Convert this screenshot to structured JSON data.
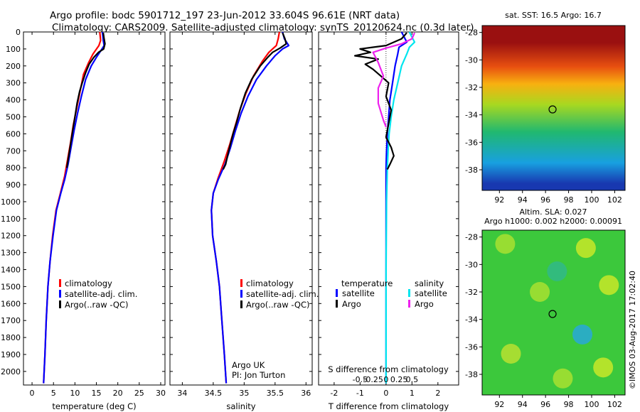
{
  "header": {
    "line1": "Argo profile: bodc 5901712_197 23-Jun-2012 33.604S 96.61E (NRT data)",
    "line2": "Climatology: CARS2009. Satellite-adjusted climatology: synTS_20120624.nc (0.3d later)"
  },
  "colors": {
    "climatology": "#ff0000",
    "satellite": "#0000ff",
    "argo": "#000000",
    "satellite_salinity": "#00e5ee",
    "argo_salinity": "#ee22ee"
  },
  "chart_data": [
    {
      "type": "line",
      "id": "temperature",
      "xlabel": "temperature (deg C)",
      "ylabel": "",
      "xlim": [
        -2,
        31
      ],
      "ylim": [
        2080,
        0
      ],
      "xticks": [
        0,
        5,
        10,
        15,
        20,
        25,
        30
      ],
      "yticks": [
        0,
        100,
        200,
        300,
        400,
        500,
        600,
        700,
        800,
        900,
        1000,
        1100,
        1200,
        1300,
        1400,
        1500,
        1600,
        1700,
        1800,
        1900,
        2000
      ],
      "legend": [
        "climatology",
        "satellite-adj. clim.",
        "Argo(..raw -QC)"
      ],
      "series": [
        {
          "name": "climatology",
          "color": "#ff0000",
          "points": [
            [
              15.8,
              0
            ],
            [
              16.0,
              50
            ],
            [
              15.6,
              80
            ],
            [
              14.2,
              130
            ],
            [
              13.2,
              180
            ],
            [
              12.0,
              250
            ],
            [
              11.2,
              350
            ],
            [
              10.4,
              450
            ],
            [
              9.6,
              550
            ],
            [
              9.0,
              650
            ],
            [
              8.3,
              750
            ],
            [
              7.6,
              850
            ],
            [
              6.6,
              950
            ],
            [
              5.6,
              1050
            ],
            [
              4.8,
              1200
            ],
            [
              4.2,
              1350
            ],
            [
              3.7,
              1500
            ],
            [
              3.3,
              1700
            ],
            [
              3.0,
              1900
            ],
            [
              2.7,
              2070
            ]
          ]
        },
        {
          "name": "satellite-adj. clim.",
          "color": "#0000ff",
          "points": [
            [
              16.4,
              0
            ],
            [
              16.6,
              50
            ],
            [
              16.8,
              80
            ],
            [
              16.3,
              100
            ],
            [
              15.0,
              150
            ],
            [
              13.8,
              200
            ],
            [
              12.5,
              280
            ],
            [
              11.5,
              380
            ],
            [
              10.6,
              480
            ],
            [
              9.8,
              580
            ],
            [
              9.1,
              680
            ],
            [
              8.4,
              780
            ],
            [
              7.6,
              870
            ],
            [
              6.7,
              950
            ],
            [
              5.7,
              1050
            ],
            [
              4.9,
              1200
            ],
            [
              4.2,
              1350
            ],
            [
              3.7,
              1500
            ],
            [
              3.3,
              1700
            ],
            [
              3.0,
              1900
            ],
            [
              2.7,
              2070
            ]
          ]
        },
        {
          "name": "Argo(..raw -QC)",
          "color": "#000000",
          "points": [
            [
              16.6,
              5
            ],
            [
              16.8,
              40
            ],
            [
              17.0,
              70
            ],
            [
              16.7,
              100
            ],
            [
              15.5,
              120
            ],
            [
              14.4,
              150
            ],
            [
              13.3,
              190
            ],
            [
              12.5,
              240
            ],
            [
              11.7,
              300
            ],
            [
              11.1,
              350
            ],
            [
              10.5,
              420
            ],
            [
              10.0,
              500
            ],
            [
              9.5,
              580
            ],
            [
              9.0,
              660
            ],
            [
              8.5,
              740
            ],
            [
              8.1,
              800
            ]
          ]
        }
      ]
    },
    {
      "type": "line",
      "id": "salinity",
      "xlabel": "salinity",
      "ylabel": "",
      "xlim": [
        33.8,
        36.1
      ],
      "ylim": [
        2080,
        0
      ],
      "xticks": [
        34,
        34.5,
        35,
        35.5,
        36
      ],
      "legend": [
        "climatology",
        "satellite-adj. clim.",
        "Argo(..raw -QC)"
      ],
      "annotation": [
        "Argo UK",
        "PI: Jon Turton"
      ],
      "series": [
        {
          "name": "climatology",
          "color": "#ff0000",
          "points": [
            [
              35.57,
              0
            ],
            [
              35.55,
              40
            ],
            [
              35.52,
              80
            ],
            [
              35.4,
              120
            ],
            [
              35.3,
              170
            ],
            [
              35.15,
              260
            ],
            [
              35.03,
              360
            ],
            [
              34.93,
              460
            ],
            [
              34.85,
              560
            ],
            [
              34.77,
              660
            ],
            [
              34.68,
              760
            ],
            [
              34.58,
              860
            ],
            [
              34.5,
              950
            ],
            [
              34.47,
              1050
            ],
            [
              34.49,
              1200
            ],
            [
              34.55,
              1350
            ],
            [
              34.6,
              1500
            ],
            [
              34.64,
              1700
            ],
            [
              34.68,
              1900
            ],
            [
              34.71,
              2070
            ]
          ]
        },
        {
          "name": "satellite-adj. clim.",
          "color": "#0000ff",
          "points": [
            [
              35.62,
              0
            ],
            [
              35.65,
              40
            ],
            [
              35.72,
              80
            ],
            [
              35.62,
              100
            ],
            [
              35.5,
              140
            ],
            [
              35.36,
              200
            ],
            [
              35.2,
              280
            ],
            [
              35.06,
              380
            ],
            [
              34.95,
              480
            ],
            [
              34.86,
              580
            ],
            [
              34.78,
              680
            ],
            [
              34.69,
              780
            ],
            [
              34.58,
              870
            ],
            [
              34.5,
              950
            ],
            [
              34.47,
              1050
            ],
            [
              34.49,
              1200
            ],
            [
              34.55,
              1350
            ],
            [
              34.6,
              1500
            ],
            [
              34.64,
              1700
            ],
            [
              34.68,
              1900
            ],
            [
              34.71,
              2070
            ]
          ]
        },
        {
          "name": "Argo(..raw -QC)",
          "color": "#000000",
          "points": [
            [
              35.62,
              5
            ],
            [
              35.66,
              40
            ],
            [
              35.68,
              70
            ],
            [
              35.58,
              95
            ],
            [
              35.46,
              120
            ],
            [
              35.38,
              150
            ],
            [
              35.26,
              200
            ],
            [
              35.12,
              280
            ],
            [
              35.02,
              360
            ],
            [
              34.94,
              450
            ],
            [
              34.88,
              530
            ],
            [
              34.82,
              600
            ],
            [
              34.75,
              700
            ],
            [
              34.7,
              780
            ],
            [
              34.66,
              810
            ]
          ]
        }
      ]
    },
    {
      "type": "line",
      "id": "difference",
      "xlabel": "T difference from climatology",
      "xlabel2": "S difference from climatology",
      "ylabel": "",
      "xlim": [
        -2.6,
        2.8
      ],
      "ylim": [
        2080,
        0
      ],
      "xticks": [
        -2,
        -1,
        0,
        1,
        2
      ],
      "xticks2": [
        "-0.5",
        "-0.25",
        "0",
        "0.25",
        "0.5"
      ],
      "legend_titles": [
        "temperature",
        "salinity"
      ],
      "legend": [
        "satellite",
        "Argo",
        "satellite",
        "Argo"
      ],
      "series": [
        {
          "name": "satellite",
          "quantity": "temperature",
          "color": "#0000ff",
          "points": [
            [
              0.6,
              0
            ],
            [
              0.7,
              30
            ],
            [
              0.8,
              60
            ],
            [
              0.5,
              90
            ],
            [
              0.45,
              130
            ],
            [
              0.35,
              200
            ],
            [
              0.25,
              300
            ],
            [
              0.15,
              400
            ],
            [
              0.1,
              500
            ],
            [
              0.05,
              600
            ],
            [
              0.02,
              700
            ],
            [
              0.0,
              800
            ],
            [
              0.0,
              1000
            ],
            [
              0.0,
              1400
            ],
            [
              0.0,
              1800
            ],
            [
              0.0,
              2070
            ]
          ]
        },
        {
          "name": "satellite",
          "quantity": "salinity",
          "color": "#00e5ee",
          "points": [
            [
              0.9,
              0
            ],
            [
              1.0,
              30
            ],
            [
              1.1,
              60
            ],
            [
              0.9,
              90
            ],
            [
              0.8,
              130
            ],
            [
              0.6,
              200
            ],
            [
              0.45,
              300
            ],
            [
              0.3,
              400
            ],
            [
              0.2,
              500
            ],
            [
              0.12,
              600
            ],
            [
              0.08,
              700
            ],
            [
              0.05,
              800
            ],
            [
              0.02,
              1000
            ],
            [
              0.0,
              1400
            ],
            [
              0.0,
              1800
            ],
            [
              0.0,
              2070
            ]
          ]
        },
        {
          "name": "Argo",
          "quantity": "temperature",
          "color": "#000000",
          "points": [
            [
              0.8,
              5
            ],
            [
              0.6,
              40
            ],
            [
              0.0,
              80
            ],
            [
              -0.5,
              90
            ],
            [
              -1.0,
              100
            ],
            [
              -0.6,
              120
            ],
            [
              -1.2,
              140
            ],
            [
              -0.3,
              160
            ],
            [
              -0.8,
              190
            ],
            [
              -0.5,
              220
            ],
            [
              -0.2,
              260
            ],
            [
              0.1,
              300
            ],
            [
              0.0,
              380
            ],
            [
              0.2,
              460
            ],
            [
              0.1,
              540
            ],
            [
              0.0,
              620
            ],
            [
              0.2,
              680
            ],
            [
              0.3,
              730
            ],
            [
              0.15,
              780
            ],
            [
              0.05,
              810
            ]
          ]
        },
        {
          "name": "Argo",
          "quantity": "salinity",
          "color": "#ee22ee",
          "points": [
            [
              1.1,
              5
            ],
            [
              1.0,
              40
            ],
            [
              0.6,
              70
            ],
            [
              0.0,
              95
            ],
            [
              -0.5,
              120
            ],
            [
              -0.3,
              180
            ],
            [
              -0.1,
              260
            ],
            [
              -0.3,
              330
            ],
            [
              -0.3,
              420
            ],
            [
              -0.1,
              520
            ],
            [
              0.0,
              560
            ]
          ]
        }
      ]
    },
    {
      "type": "heatmap",
      "id": "sst-map",
      "title": "sat. SST: 16.5 Argo: 16.7",
      "xticks": [
        92,
        94,
        96,
        98,
        100,
        102
      ],
      "yticks": [
        -28,
        -30,
        -32,
        -34,
        -36,
        -38
      ],
      "xlim": [
        90.5,
        102.9
      ],
      "ylim": [
        -39.5,
        -27.5
      ],
      "marker": [
        96.61,
        -33.604
      ],
      "colormap": "jet",
      "bands": [
        {
          "lat_top": -27.5,
          "lat_bottom": -30.0,
          "color": "#9a1010"
        },
        {
          "lat_top": -30.0,
          "lat_bottom": -31.0,
          "color": "#e85010"
        },
        {
          "lat_top": -31.0,
          "lat_bottom": -32.5,
          "color": "#f8b010"
        },
        {
          "lat_top": -32.5,
          "lat_bottom": -34.0,
          "color": "#a8d820"
        },
        {
          "lat_top": -34.0,
          "lat_bottom": -36.5,
          "color": "#20b870"
        },
        {
          "lat_top": -36.5,
          "lat_bottom": -38.5,
          "color": "#18a0e0"
        },
        {
          "lat_top": -38.5,
          "lat_bottom": -39.5,
          "color": "#1838b0"
        }
      ]
    },
    {
      "type": "heatmap",
      "id": "sla-map",
      "title": "Altim. SLA: 0.027",
      "subtitle": "Argo h1000: 0.002 h2000: 0.00091",
      "xticks": [
        92,
        94,
        96,
        98,
        100,
        102
      ],
      "yticks": [
        -28,
        -30,
        -32,
        -34,
        -36,
        -38
      ],
      "xlim": [
        90.5,
        102.9
      ],
      "ylim": [
        -39.5,
        -27.5
      ],
      "marker": [
        96.61,
        -33.604
      ],
      "colormap": "jet",
      "background": "#3cc83c",
      "blobs": [
        {
          "lon": 92.5,
          "lat": -28.5,
          "color": "#a8e030"
        },
        {
          "lon": 99.5,
          "lat": -28.8,
          "color": "#c8e828"
        },
        {
          "lon": 97.0,
          "lat": -30.5,
          "color": "#30b888"
        },
        {
          "lon": 95.5,
          "lat": -32.0,
          "color": "#a8e030"
        },
        {
          "lon": 101.5,
          "lat": -31.5,
          "color": "#c8e828"
        },
        {
          "lon": 99.2,
          "lat": -35.1,
          "color": "#28a8d8"
        },
        {
          "lon": 93.0,
          "lat": -36.5,
          "color": "#b8e030"
        },
        {
          "lon": 101.0,
          "lat": -37.5,
          "color": "#c8e828"
        },
        {
          "lon": 97.5,
          "lat": -38.3,
          "color": "#a8e030"
        }
      ]
    }
  ],
  "credit": "©IMOS 03-Aug-2017 17:02:40"
}
